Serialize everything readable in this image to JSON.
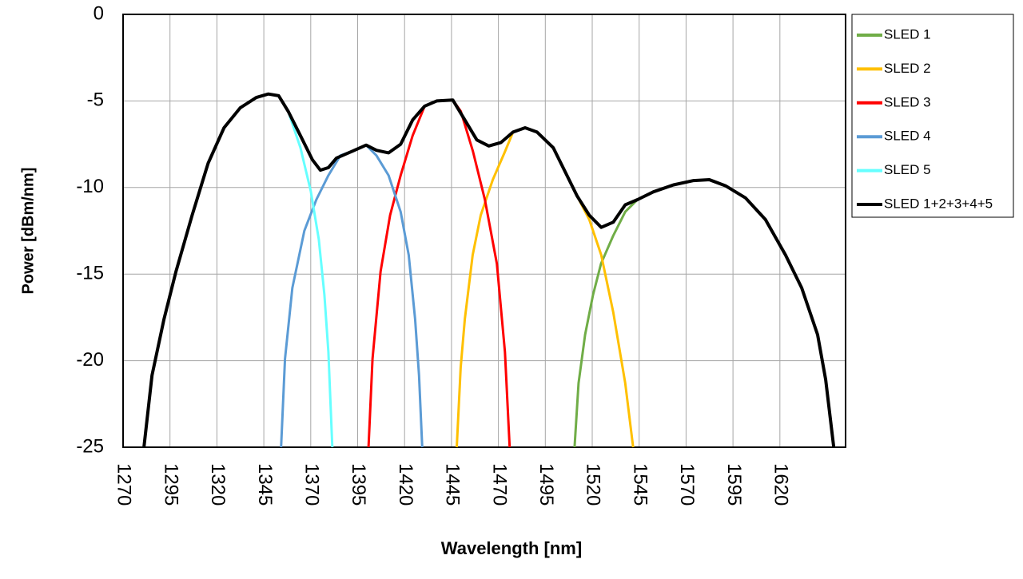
{
  "chart_data": {
    "type": "line",
    "xlabel": "Wavelength [nm]",
    "ylabel": "Power [dBm/nm]",
    "xlim": [
      1270,
      1655
    ],
    "xticks": [
      1270,
      1295,
      1320,
      1345,
      1370,
      1395,
      1420,
      1445,
      1470,
      1495,
      1520,
      1545,
      1570,
      1595,
      1620
    ],
    "ylim": [
      -25,
      0
    ],
    "yticks": [
      0,
      -5,
      -10,
      -15,
      -20,
      -25
    ],
    "grid": true,
    "legend": "right",
    "series": [
      {
        "name": "SLED 1",
        "color": "#70ad47",
        "x": [
          1510.6,
          1512.7,
          1516.2,
          1520.4,
          1524.7,
          1531.1,
          1537.6,
          1544.1,
          1552.6,
          1563.3,
          1574,
          1582.4,
          1591,
          1601.7,
          1612.3,
          1623,
          1631.6,
          1640.1,
          1644.4,
          1648.7
        ],
        "values": [
          -25,
          -21.3,
          -18.5,
          -16.2,
          -14.4,
          -12.8,
          -11.4,
          -10.7,
          -10.25,
          -9.85,
          -9.6,
          -9.55,
          -9.9,
          -10.6,
          -11.85,
          -13.9,
          -15.8,
          -18.5,
          -21.1,
          -25
        ]
      },
      {
        "name": "SLED 2",
        "color": "#ffc000",
        "x": [
          1447.8,
          1449.9,
          1452.1,
          1456.3,
          1460.6,
          1467,
          1473.4,
          1477.8,
          1484.2,
          1490.6,
          1499.2,
          1505.6,
          1512,
          1518.4,
          1524.8,
          1531.2,
          1537.6,
          1541.8
        ],
        "values": [
          -25,
          -20.4,
          -17.6,
          -13.9,
          -11.6,
          -9.55,
          -7.95,
          -6.8,
          -6.55,
          -6.8,
          -7.7,
          -9.1,
          -10.5,
          -11.85,
          -13.9,
          -17.2,
          -21.3,
          -25
        ]
      },
      {
        "name": "SLED 3",
        "color": "#ff0000",
        "x": [
          1400.8,
          1402.9,
          1407.2,
          1412.3,
          1417.9,
          1424.3,
          1430.7,
          1437.1,
          1445.7,
          1450,
          1456.4,
          1462.8,
          1469.2,
          1473.5,
          1476
        ],
        "values": [
          -25,
          -19.9,
          -14.85,
          -11.6,
          -9.3,
          -7,
          -5.3,
          -5,
          -4.95,
          -5.6,
          -7.9,
          -10.7,
          -14.4,
          -19.5,
          -25
        ]
      },
      {
        "name": "SLED 4",
        "color": "#5b9bd5",
        "x": [
          1354.2,
          1356.3,
          1360.2,
          1366.6,
          1373,
          1379.4,
          1385.8,
          1392.2,
          1399.5,
          1405,
          1411.5,
          1417.9,
          1422.2,
          1425.6,
          1427.7,
          1429.4
        ],
        "values": [
          -25,
          -19.9,
          -15.8,
          -12.5,
          -10.7,
          -9.3,
          -8.15,
          -7.9,
          -7.55,
          -8.15,
          -9.3,
          -11.4,
          -13.9,
          -17.6,
          -20.85,
          -25
        ]
      },
      {
        "name": "SLED 5",
        "color": "#66ffff",
        "x": [
          1281.1,
          1285.4,
          1291.8,
          1298.2,
          1306.8,
          1315.3,
          1323.8,
          1332.4,
          1341,
          1347.4,
          1352.9,
          1358,
          1364.5,
          1370,
          1374.3,
          1377.3,
          1379.4,
          1381.5
        ],
        "values": [
          -25,
          -20.85,
          -17.6,
          -14.85,
          -11.6,
          -8.6,
          -6.55,
          -5.4,
          -4.8,
          -4.6,
          -4.7,
          -5.6,
          -7.7,
          -10.2,
          -13,
          -16.2,
          -19.5,
          -25
        ]
      },
      {
        "name": "SLED 1+2+3+4+5",
        "color": "#000000",
        "x": [
          1281.1,
          1285.4,
          1291.8,
          1298.2,
          1306.8,
          1315.3,
          1323.8,
          1332.4,
          1341,
          1347.4,
          1352.9,
          1358,
          1364.5,
          1370.9,
          1375.1,
          1379.4,
          1383.7,
          1392.2,
          1399.5,
          1405,
          1411.5,
          1417.9,
          1424.3,
          1430.7,
          1437.1,
          1445.7,
          1452.1,
          1458.5,
          1464.9,
          1471.4,
          1477.8,
          1484.2,
          1490.6,
          1499.2,
          1505.6,
          1512,
          1518.4,
          1524.8,
          1531.2,
          1537.6,
          1544.1,
          1552.6,
          1563.3,
          1574,
          1582.4,
          1591,
          1601.7,
          1612.3,
          1623,
          1631.6,
          1640.1,
          1644.4,
          1648.7
        ],
        "values": [
          -25,
          -20.85,
          -17.6,
          -14.85,
          -11.6,
          -8.6,
          -6.55,
          -5.4,
          -4.8,
          -4.6,
          -4.7,
          -5.6,
          -7,
          -8.4,
          -9,
          -8.85,
          -8.3,
          -7.9,
          -7.55,
          -7.85,
          -8,
          -7.5,
          -6.1,
          -5.3,
          -5,
          -4.95,
          -6.1,
          -7.25,
          -7.6,
          -7.4,
          -6.8,
          -6.55,
          -6.8,
          -7.7,
          -9.1,
          -10.5,
          -11.6,
          -12.3,
          -12,
          -11,
          -10.7,
          -10.25,
          -9.85,
          -9.6,
          -9.55,
          -9.9,
          -10.6,
          -11.85,
          -13.9,
          -15.8,
          -18.5,
          -21.1,
          -25
        ]
      }
    ]
  }
}
